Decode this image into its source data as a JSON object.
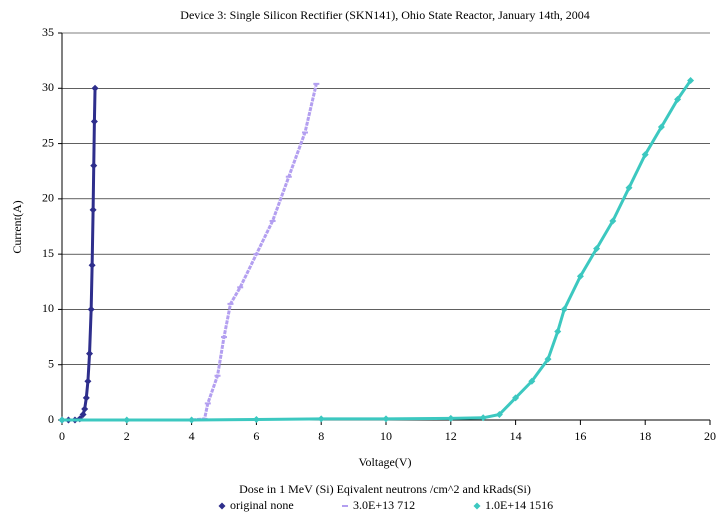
{
  "chart_data": {
    "type": "scatter",
    "title": "Device 3: Single Silicon Rectifier (SKN141), Ohio State Reactor, January 14th, 2004",
    "x_label": "Voltage(V)",
    "y_label": "Current(A)",
    "legend_title": "Dose in 1 MeV (Si) Eqivalent neutrons /cm^2 and kRads(Si)",
    "legend": "bottom",
    "grid": true,
    "xlim": [
      0,
      20
    ],
    "xticks": [
      0,
      2,
      4,
      6,
      8,
      10,
      12,
      14,
      16,
      18,
      20
    ],
    "ylim": [
      0,
      35
    ],
    "yticks": [
      0,
      5,
      10,
      15,
      20,
      25,
      30,
      35
    ],
    "series": [
      {
        "name": "original none",
        "color": "#2e2e8c",
        "marker": "diamond",
        "x": [
          0,
          0.2,
          0.4,
          0.55,
          0.65,
          0.7,
          0.75,
          0.8,
          0.85,
          0.9,
          0.93,
          0.96,
          0.98,
          1.0,
          1.02
        ],
        "values": [
          0,
          0,
          0,
          0.1,
          0.5,
          1,
          2,
          3.5,
          6,
          10,
          14,
          19,
          23,
          27,
          30
        ]
      },
      {
        "name": "3.0E+13 712",
        "color": "#b39ff0",
        "marker": "dash",
        "x": [
          0,
          2,
          4,
          4.4,
          4.5,
          4.8,
          5.0,
          5.2,
          5.5,
          6.0,
          6.5,
          7.0,
          7.5,
          7.85
        ],
        "values": [
          0,
          0,
          0,
          0.1,
          1.5,
          4,
          7.5,
          10.5,
          12,
          15,
          18,
          22,
          26,
          30.4
        ]
      },
      {
        "name": "1.0E+14 1516",
        "color": "#3cc8c0",
        "marker": "diamond",
        "x": [
          0,
          2,
          4,
          6,
          8,
          10,
          12,
          13,
          13.5,
          14,
          14.5,
          15,
          15.3,
          15.5,
          16,
          16.5,
          17,
          17.5,
          18,
          18.5,
          19,
          19.4
        ],
        "values": [
          0,
          0,
          0,
          0.05,
          0.1,
          0.1,
          0.15,
          0.2,
          0.5,
          2,
          3.5,
          5.5,
          8,
          10,
          13,
          15.5,
          18,
          21,
          24,
          26.5,
          29,
          30.7
        ]
      }
    ]
  }
}
